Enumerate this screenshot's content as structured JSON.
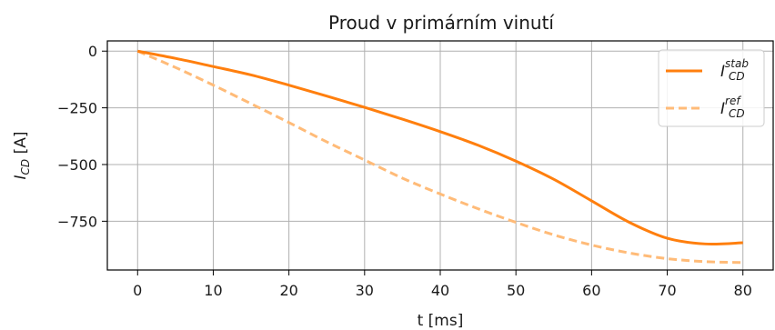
{
  "chart_data": {
    "type": "line",
    "title": "Proud v primárním vinutí",
    "xlabel": "t [ms]",
    "ylabel": {
      "main": "I",
      "sub": "CD",
      "unit": " [A]"
    },
    "xlim": [
      -4,
      84
    ],
    "ylim": [
      -965,
      45
    ],
    "xticks": [
      0,
      10,
      20,
      30,
      40,
      50,
      60,
      70,
      80
    ],
    "xtick_labels": [
      "0",
      "10",
      "20",
      "30",
      "40",
      "50",
      "60",
      "70",
      "80"
    ],
    "yticks": [
      0,
      -250,
      -500,
      -750
    ],
    "ytick_labels": [
      "0",
      "−250",
      "−500",
      "−750"
    ],
    "grid": true,
    "legend_position": "top-right",
    "series": [
      {
        "name": "I_CD^stab",
        "legend": {
          "main": "I",
          "sup": "stab",
          "sub": "CD"
        },
        "color": "#ff7f0e",
        "style": "solid",
        "x": [
          0,
          5,
          10,
          15,
          20,
          25,
          30,
          35,
          40,
          45,
          50,
          55,
          60,
          65,
          70,
          75,
          80
        ],
        "y": [
          0,
          -32,
          -68,
          -105,
          -150,
          -198,
          -248,
          -300,
          -355,
          -415,
          -485,
          -565,
          -660,
          -755,
          -825,
          -850,
          -845
        ]
      },
      {
        "name": "I_CD^ref",
        "legend": {
          "main": "I",
          "sup": "ref",
          "sub": "CD"
        },
        "color": "#ffbb78",
        "style": "dashed",
        "x": [
          0,
          5,
          10,
          15,
          20,
          25,
          30,
          35,
          40,
          45,
          50,
          55,
          60,
          65,
          70,
          75,
          80
        ],
        "y": [
          0,
          -72,
          -150,
          -232,
          -315,
          -400,
          -480,
          -560,
          -630,
          -695,
          -755,
          -810,
          -855,
          -890,
          -915,
          -928,
          -932
        ]
      }
    ]
  }
}
